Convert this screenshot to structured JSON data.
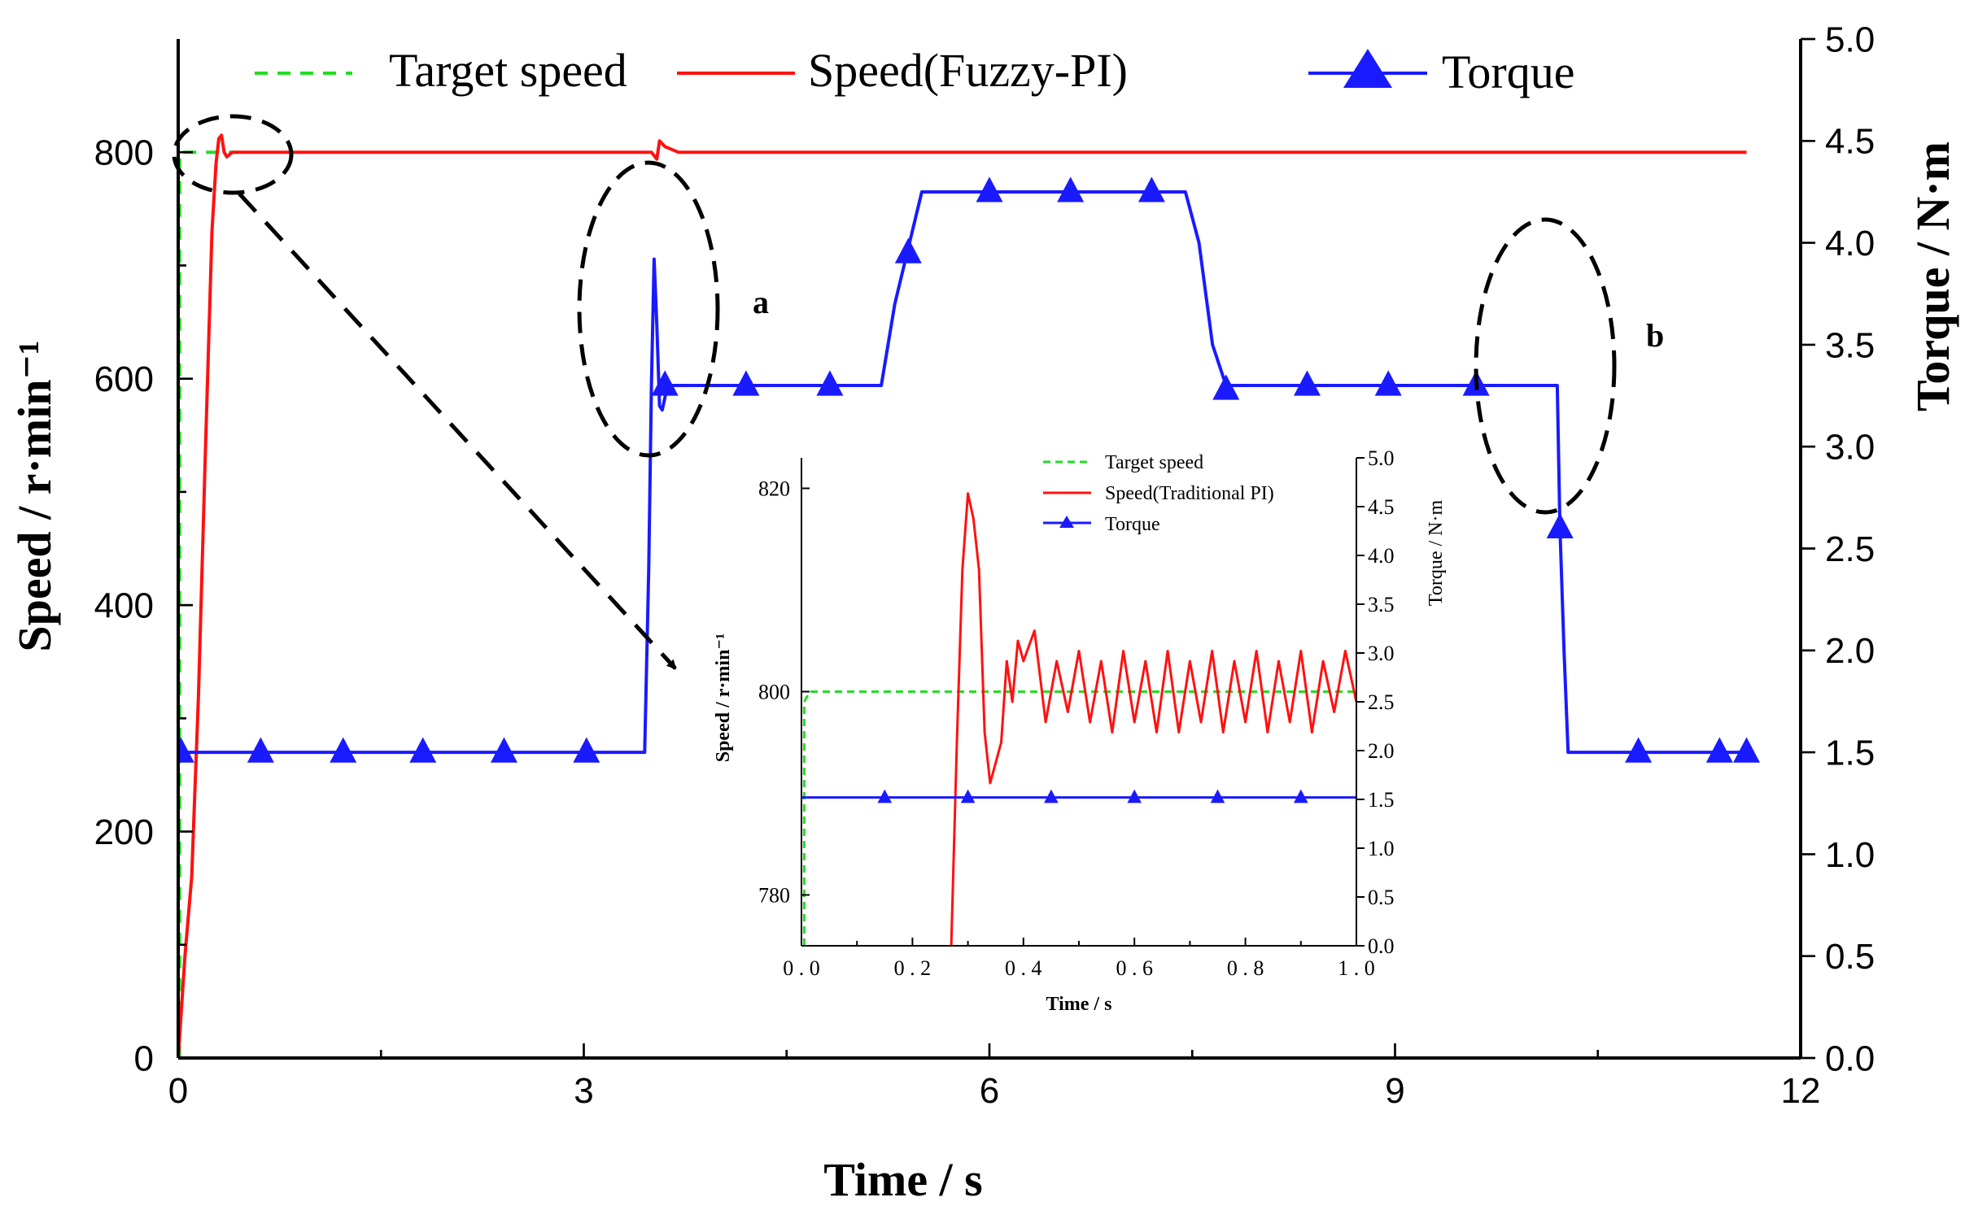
{
  "chart_data": [
    {
      "id": "main",
      "type": "line",
      "xlabel": "Time / s",
      "ylabel": "Speed / r·min⁻¹",
      "y2label": "Torque / N·m",
      "xlim": [
        0,
        12
      ],
      "ylim": [
        0,
        900
      ],
      "y2lim": [
        0,
        5
      ],
      "xticks": [
        0,
        3,
        6,
        9,
        12
      ],
      "yticks": [
        0,
        200,
        400,
        600,
        800
      ],
      "y2ticks": [
        0.0,
        0.5,
        1.0,
        1.5,
        2.0,
        2.5,
        3.0,
        3.5,
        4.0,
        4.5,
        5.0
      ],
      "legend": {
        "position": "top",
        "entries": [
          "Target speed",
          "Speed(Fuzzy-PI)",
          "Torque"
        ]
      },
      "series": [
        {
          "name": "Target speed",
          "axis": "left",
          "color": "#22dd22",
          "style": "dashed",
          "x": [
            0,
            0.01,
            0.01,
            0.45
          ],
          "values": [
            0,
            0,
            800,
            800
          ]
        },
        {
          "name": "Speed(Fuzzy-PI)",
          "axis": "left",
          "color": "#ff1111",
          "style": "solid",
          "x": [
            0,
            0.05,
            0.1,
            0.15,
            0.2,
            0.25,
            0.28,
            0.3,
            0.32,
            0.34,
            0.36,
            0.4,
            0.5,
            3.5,
            3.54,
            3.56,
            3.6,
            3.7,
            11.6
          ],
          "values": [
            0,
            90,
            160,
            320,
            530,
            730,
            790,
            812,
            815,
            800,
            796,
            800,
            800,
            800,
            794,
            810,
            805,
            800,
            800
          ]
        },
        {
          "name": "Torque",
          "axis": "right",
          "color": "#1a1aff",
          "style": "solid-triangle",
          "x": [
            0,
            3.45,
            3.48,
            3.5,
            3.52,
            3.54,
            3.56,
            3.58,
            3.62,
            3.7,
            5.2,
            5.3,
            5.5,
            5.9,
            7.45,
            7.55,
            7.65,
            7.75,
            10.2,
            10.22,
            10.25,
            10.28,
            11.6
          ],
          "values": [
            1.5,
            1.5,
            2.4,
            3.3,
            3.92,
            3.6,
            3.2,
            3.18,
            3.3,
            3.3,
            3.3,
            3.7,
            4.25,
            4.25,
            4.25,
            4.0,
            3.5,
            3.3,
            3.3,
            2.6,
            2.0,
            1.5,
            1.5
          ],
          "marker_x": [
            0.02,
            0.61,
            1.22,
            1.81,
            2.41,
            3.02,
            3.6,
            4.2,
            4.82,
            5.4,
            6.0,
            6.6,
            7.2,
            7.75,
            8.35,
            8.95,
            9.6,
            10.22,
            10.8,
            11.4,
            11.6
          ],
          "marker_values": [
            1.5,
            1.5,
            1.5,
            1.5,
            1.5,
            1.5,
            3.3,
            3.3,
            3.3,
            3.95,
            4.25,
            4.25,
            4.25,
            3.28,
            3.3,
            3.3,
            3.3,
            2.6,
            1.5,
            1.5,
            1.5
          ]
        }
      ],
      "annotations": [
        {
          "label": "a",
          "near_x": 3.6,
          "near_y_torque": 3.8
        },
        {
          "label": "b",
          "near_x": 10.4,
          "near_y_torque": 3.5
        }
      ]
    },
    {
      "id": "inset",
      "type": "line",
      "xlabel": "Time / s",
      "ylabel": "Speed / r·min⁻¹",
      "y2label": "Torque / N·m",
      "xlim": [
        0,
        1
      ],
      "ylim": [
        775,
        823
      ],
      "y2lim": [
        0,
        5
      ],
      "xticks": [
        0.0,
        0.2,
        0.4,
        0.6,
        0.8,
        1.0
      ],
      "yticks": [
        780,
        800,
        820
      ],
      "y2ticks": [
        0.0,
        0.5,
        1.0,
        1.5,
        2.0,
        2.5,
        3.0,
        3.5,
        4.0,
        4.5,
        5.0
      ],
      "legend": {
        "position": "top-right",
        "entries": [
          "Target speed",
          "Speed(Traditional PI)",
          "Torque"
        ]
      },
      "series": [
        {
          "name": "Target speed",
          "axis": "left",
          "color": "#22dd22",
          "style": "dashed",
          "x": [
            0.005,
            0.005,
            0.015,
            1.0
          ],
          "values": [
            775,
            799,
            800,
            800
          ]
        },
        {
          "name": "Speed(Traditional PI)",
          "axis": "left",
          "color": "#ff1111",
          "style": "solid",
          "x": [
            0.27,
            0.28,
            0.29,
            0.3,
            0.31,
            0.32,
            0.33,
            0.34,
            0.35,
            0.36,
            0.37,
            0.38,
            0.39,
            0.4,
            0.42,
            0.44,
            0.46,
            0.48,
            0.5,
            0.52,
            0.54,
            0.56,
            0.58,
            0.6,
            0.62,
            0.64,
            0.66,
            0.68,
            0.7,
            0.72,
            0.74,
            0.76,
            0.78,
            0.8,
            0.82,
            0.84,
            0.86,
            0.88,
            0.9,
            0.92,
            0.94,
            0.96,
            0.98,
            1.0
          ],
          "values": [
            775,
            795,
            812,
            819.5,
            817,
            812,
            796,
            791,
            793,
            795,
            803,
            799,
            805,
            803,
            806,
            797,
            803,
            798,
            804,
            797,
            803,
            796,
            804,
            797,
            803,
            796,
            804,
            796,
            803,
            797,
            804,
            796,
            803,
            797,
            804,
            796,
            803,
            797,
            804,
            796,
            803,
            798,
            804,
            799
          ]
        },
        {
          "name": "Torque",
          "axis": "right",
          "color": "#1a1aff",
          "style": "solid-triangle",
          "x": [
            0.0,
            1.0
          ],
          "values": [
            1.52,
            1.52
          ],
          "marker_x": [
            0.15,
            0.3,
            0.45,
            0.6,
            0.75,
            0.9
          ],
          "marker_values": [
            1.52,
            1.52,
            1.52,
            1.52,
            1.52,
            1.52
          ]
        }
      ]
    }
  ]
}
